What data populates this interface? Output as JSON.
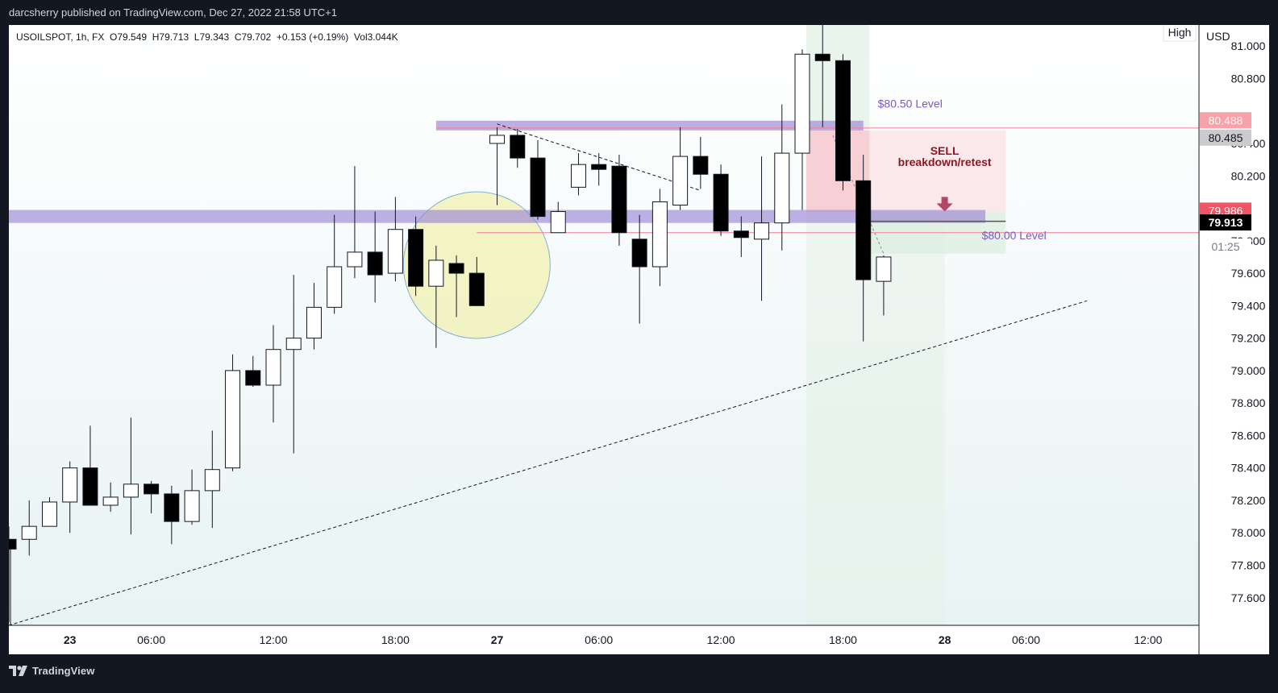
{
  "publish_line": "darcsherry published on TradingView.com, Dec 27, 2022 21:58 UTC+1",
  "footer_brand": "TradingView",
  "chart_data": {
    "type": "candlestick",
    "symbol_line": "USOILSPOT, 1h, FX  O79.549  H79.713  L79.343  C79.702  +0.153 (+0.19%)  Vol3.044K",
    "currency": "USD",
    "high_tag": "High",
    "y_axis": {
      "ylim": [
        77.43,
        81.13
      ],
      "ticks": [
        "81.000",
        "80.800",
        "80.400",
        "80.200",
        "79.800",
        "79.600",
        "79.400",
        "79.200",
        "79.000",
        "78.800",
        "78.600",
        "78.400",
        "78.200",
        "78.000",
        "77.800",
        "77.600"
      ]
    },
    "x_axis": {
      "start_index": -3,
      "end_index": 55.5,
      "ticks": [
        {
          "label": "23",
          "i": 0,
          "bold": true
        },
        {
          "label": "06:00",
          "i": 4,
          "bold": false
        },
        {
          "label": "12:00",
          "i": 10,
          "bold": false
        },
        {
          "label": "18:00",
          "i": 16,
          "bold": false
        },
        {
          "label": "27",
          "i": 21,
          "bold": true
        },
        {
          "label": "06:00",
          "i": 26,
          "bold": false
        },
        {
          "label": "12:00",
          "i": 32,
          "bold": false
        },
        {
          "label": "18:00",
          "i": 38,
          "bold": false
        },
        {
          "label": "28",
          "i": 43,
          "bold": true
        },
        {
          "label": "06:00",
          "i": 47,
          "bold": false
        },
        {
          "label": "12:00",
          "i": 53,
          "bold": false
        }
      ]
    },
    "candles": [
      {
        "i": -3,
        "o": 77.96,
        "h": 78.04,
        "l": 77.45,
        "c": 77.9
      },
      {
        "i": -2,
        "o": 77.96,
        "h": 78.2,
        "l": 77.86,
        "c": 78.04
      },
      {
        "i": -1,
        "o": 78.04,
        "h": 78.22,
        "l": 78.04,
        "c": 78.19
      },
      {
        "i": 0,
        "o": 78.19,
        "h": 78.44,
        "l": 78.0,
        "c": 78.4
      },
      {
        "i": 1,
        "o": 78.4,
        "h": 78.66,
        "l": 78.17,
        "c": 78.17
      },
      {
        "i": 2,
        "o": 78.17,
        "h": 78.31,
        "l": 78.13,
        "c": 78.22
      },
      {
        "i": 3,
        "o": 78.22,
        "h": 78.71,
        "l": 77.99,
        "c": 78.3
      },
      {
        "i": 4,
        "o": 78.3,
        "h": 78.32,
        "l": 78.12,
        "c": 78.24
      },
      {
        "i": 5,
        "o": 78.24,
        "h": 78.29,
        "l": 77.93,
        "c": 78.07
      },
      {
        "i": 6,
        "o": 78.07,
        "h": 78.39,
        "l": 78.05,
        "c": 78.26
      },
      {
        "i": 7,
        "o": 78.26,
        "h": 78.63,
        "l": 78.03,
        "c": 78.39
      },
      {
        "i": 8,
        "o": 78.4,
        "h": 79.1,
        "l": 78.38,
        "c": 79.0
      },
      {
        "i": 9,
        "o": 79.0,
        "h": 79.09,
        "l": 78.9,
        "c": 78.91
      },
      {
        "i": 10,
        "o": 78.91,
        "h": 79.28,
        "l": 78.68,
        "c": 79.13
      },
      {
        "i": 11,
        "o": 79.13,
        "h": 79.59,
        "l": 78.49,
        "c": 79.2
      },
      {
        "i": 12,
        "o": 79.2,
        "h": 79.54,
        "l": 79.13,
        "c": 79.39
      },
      {
        "i": 13,
        "o": 79.39,
        "h": 79.96,
        "l": 79.35,
        "c": 79.64
      },
      {
        "i": 14,
        "o": 79.64,
        "h": 80.26,
        "l": 79.57,
        "c": 79.73
      },
      {
        "i": 15,
        "o": 79.73,
        "h": 79.98,
        "l": 79.42,
        "c": 79.59
      },
      {
        "i": 16,
        "o": 79.6,
        "h": 80.07,
        "l": 79.55,
        "c": 79.87
      },
      {
        "i": 17,
        "o": 79.87,
        "h": 79.95,
        "l": 79.46,
        "c": 79.52
      },
      {
        "i": 18,
        "o": 79.52,
        "h": 79.77,
        "l": 79.14,
        "c": 79.68
      },
      {
        "i": 19,
        "o": 79.66,
        "h": 79.71,
        "l": 79.33,
        "c": 79.6
      },
      {
        "i": 20,
        "o": 79.6,
        "h": 79.7,
        "l": 79.4,
        "c": 79.4
      },
      {
        "i": 21,
        "o": 80.4,
        "h": 80.5,
        "l": 80.02,
        "c": 80.45
      },
      {
        "i": 22,
        "o": 80.45,
        "h": 80.49,
        "l": 80.25,
        "c": 80.31
      },
      {
        "i": 23,
        "o": 80.31,
        "h": 80.42,
        "l": 79.93,
        "c": 79.95
      },
      {
        "i": 24,
        "o": 79.85,
        "h": 80.04,
        "l": 79.86,
        "c": 79.98
      },
      {
        "i": 25,
        "o": 80.13,
        "h": 80.34,
        "l": 80.08,
        "c": 80.27
      },
      {
        "i": 26,
        "o": 80.27,
        "h": 80.34,
        "l": 80.14,
        "c": 80.24
      },
      {
        "i": 27,
        "o": 80.26,
        "h": 80.33,
        "l": 79.77,
        "c": 79.85
      },
      {
        "i": 28,
        "o": 79.81,
        "h": 79.96,
        "l": 79.29,
        "c": 79.64
      },
      {
        "i": 29,
        "o": 79.64,
        "h": 80.12,
        "l": 79.52,
        "c": 80.04
      },
      {
        "i": 30,
        "o": 80.02,
        "h": 80.5,
        "l": 79.99,
        "c": 80.32
      },
      {
        "i": 31,
        "o": 80.32,
        "h": 80.44,
        "l": 80.12,
        "c": 80.21
      },
      {
        "i": 32,
        "o": 80.21,
        "h": 80.27,
        "l": 79.83,
        "c": 79.86
      },
      {
        "i": 33,
        "o": 79.86,
        "h": 79.95,
        "l": 79.7,
        "c": 79.82
      },
      {
        "i": 34,
        "o": 79.81,
        "h": 80.32,
        "l": 79.43,
        "c": 79.91
      },
      {
        "i": 35,
        "o": 79.91,
        "h": 80.64,
        "l": 79.74,
        "c": 80.34
      },
      {
        "i": 36,
        "o": 80.34,
        "h": 80.98,
        "l": 79.99,
        "c": 80.95
      },
      {
        "i": 37,
        "o": 80.95,
        "h": 81.15,
        "l": 80.5,
        "c": 80.91
      },
      {
        "i": 38,
        "o": 80.91,
        "h": 80.95,
        "l": 80.11,
        "c": 80.17
      },
      {
        "i": 39,
        "o": 80.17,
        "h": 80.33,
        "l": 79.18,
        "c": 79.56
      },
      {
        "i": 40,
        "o": 79.55,
        "h": 79.71,
        "l": 79.34,
        "c": 79.7
      }
    ],
    "price_tags": [
      {
        "label": "80.488",
        "value": 80.488,
        "bg": "#f7a1a8",
        "fg": "#ffffff"
      },
      {
        "label": "80.485",
        "value": 80.485,
        "bg": "#cbcbcd",
        "fg": "#131722"
      },
      {
        "label": "79.986",
        "value": 79.986,
        "bg": "#f05565",
        "fg": "#ffffff"
      },
      {
        "label": "79.913",
        "value": 79.913,
        "bg": "#000000",
        "fg": "#ffffff"
      }
    ],
    "countdown": "01:25",
    "annotations": {
      "level_top_label": "$80.50 Level",
      "level_bottom_label": "$80.00 Level",
      "sell_label": "SELL",
      "sell_sublabel": "breakdown/retest"
    },
    "colors": {
      "zone": "#9b85d4",
      "resistance_line": "#f77b95",
      "sell_text": "#8e1725",
      "arrow": "#b3456b",
      "highlight_circle": "#f2f0b2"
    }
  }
}
